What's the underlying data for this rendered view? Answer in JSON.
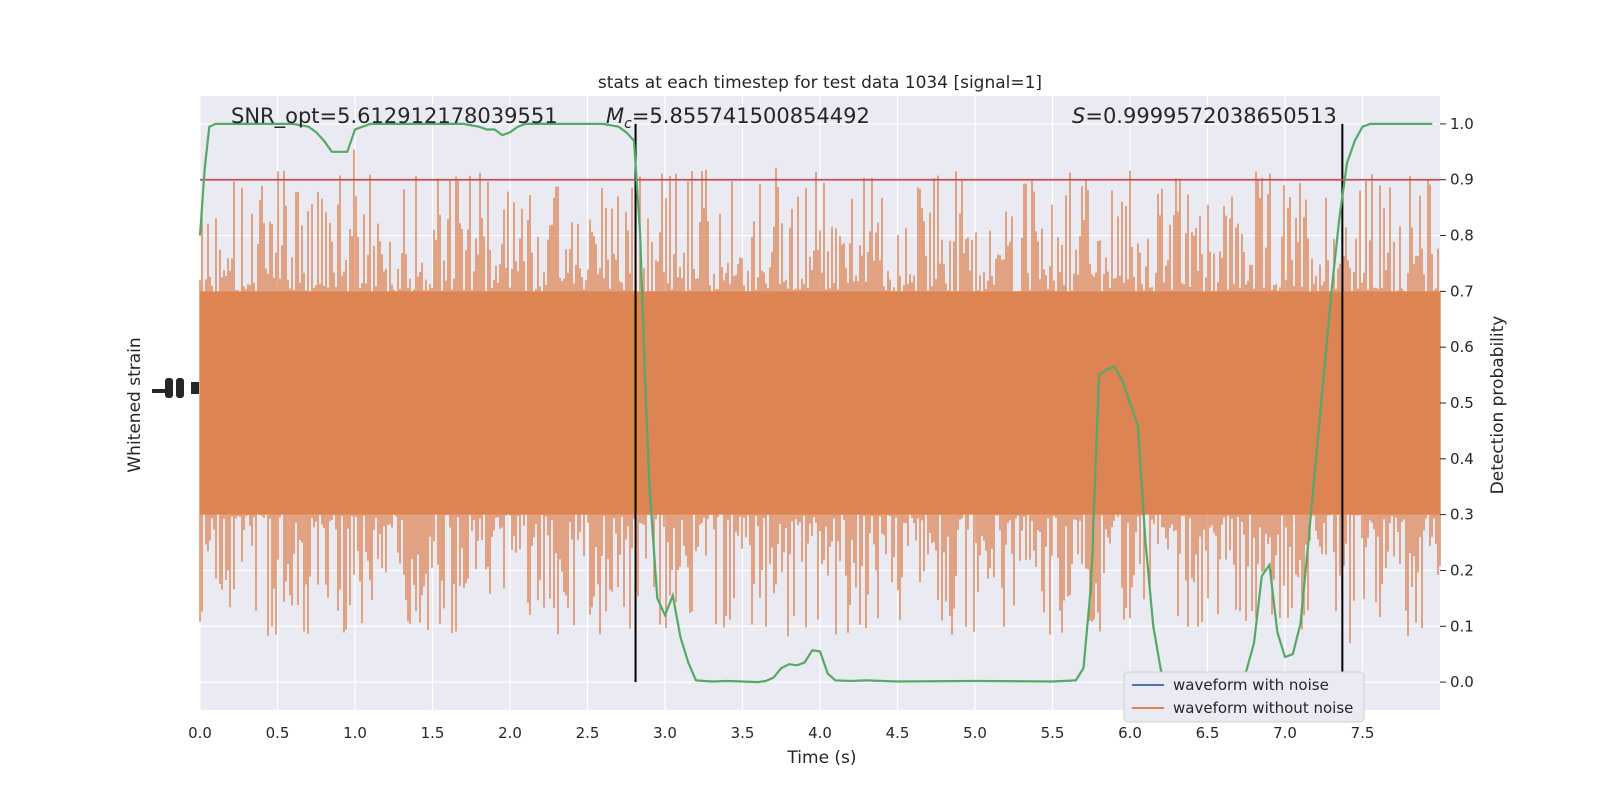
{
  "chart_data": {
    "type": "line",
    "title": "stats at each timestep for test data 1034 [signal=1]",
    "xlabel": "Time (s)",
    "ylabel_left": "Whitened strain",
    "ylabel_right": "Detection probability",
    "xlim": [
      0.0,
      8.0
    ],
    "ylim_right": [
      -0.05,
      1.05
    ],
    "x_ticks": [
      "0.0",
      "0.5",
      "1.0",
      "1.5",
      "2.0",
      "2.5",
      "3.0",
      "3.5",
      "4.0",
      "4.5",
      "5.0",
      "5.5",
      "6.0",
      "6.5",
      "7.0",
      "7.5"
    ],
    "y_ticks_right": [
      "0.0",
      "0.1",
      "0.2",
      "0.3",
      "0.4",
      "0.5",
      "0.6",
      "0.7",
      "0.8",
      "0.9",
      "1.0"
    ],
    "grid": true,
    "annotations": {
      "snr": "SNR_opt=5.612912178039551",
      "mc_sym": "M",
      "mc_sub": "c",
      "mc_val": "=5.855741500854492",
      "s_sym": "S",
      "s_val": "=0.9999572038650513"
    },
    "threshold": 0.9,
    "vlines": [
      2.81,
      7.37
    ],
    "legend": {
      "position": "lower right",
      "entries": [
        "waveform with noise",
        "waveform without noise"
      ]
    },
    "colors": {
      "waveform_with_noise": "#4c72b0",
      "waveform_without_noise": "#dd8452",
      "detection_probability": "#55a868",
      "threshold": "#c44e52",
      "vline": "#000000",
      "background": "#eaeaf2",
      "grid": "#ffffff"
    },
    "series": [
      {
        "label": "detection probability",
        "axis": "right",
        "x": [
          0.0,
          0.03,
          0.06,
          0.1,
          0.2,
          0.3,
          0.4,
          0.5,
          0.6,
          0.7,
          0.75,
          0.8,
          0.85,
          0.9,
          0.95,
          1.0,
          1.1,
          1.2,
          1.3,
          1.4,
          1.5,
          1.6,
          1.7,
          1.8,
          1.85,
          1.9,
          1.95,
          2.0,
          2.05,
          2.1,
          2.2,
          2.3,
          2.4,
          2.5,
          2.6,
          2.7,
          2.75,
          2.8,
          2.84,
          2.87,
          2.9,
          2.95,
          3.0,
          3.05,
          3.1,
          3.15,
          3.2,
          3.3,
          3.4,
          3.5,
          3.6,
          3.65,
          3.7,
          3.75,
          3.8,
          3.85,
          3.9,
          3.95,
          4.0,
          4.05,
          4.1,
          4.2,
          4.3,
          4.5,
          5.0,
          5.5,
          5.65,
          5.7,
          5.75,
          5.8,
          5.85,
          5.9,
          5.95,
          6.0,
          6.05,
          6.1,
          6.15,
          6.2,
          6.25,
          6.3,
          6.35,
          6.4,
          6.5,
          6.6,
          6.7,
          6.75,
          6.8,
          6.85,
          6.9,
          6.95,
          7.0,
          7.05,
          7.1,
          7.15,
          7.2,
          7.25,
          7.3,
          7.35,
          7.4,
          7.45,
          7.5,
          7.55,
          7.6,
          7.65,
          7.7,
          7.75,
          7.8,
          7.85,
          7.95
        ],
        "y": [
          0.8,
          0.92,
          0.995,
          1.0,
          1.0,
          1.0,
          1.0,
          1.0,
          1.0,
          0.995,
          0.985,
          0.97,
          0.95,
          0.95,
          0.95,
          0.99,
          1.0,
          1.0,
          1.0,
          1.0,
          1.0,
          1.0,
          1.0,
          0.995,
          0.99,
          0.99,
          0.98,
          0.985,
          0.995,
          1.0,
          1.0,
          1.0,
          1.0,
          1.0,
          1.0,
          0.995,
          0.985,
          0.97,
          0.8,
          0.55,
          0.35,
          0.15,
          0.12,
          0.155,
          0.08,
          0.035,
          0.003,
          0.001,
          0.002,
          0.001,
          0.0,
          0.002,
          0.008,
          0.025,
          0.032,
          0.03,
          0.035,
          0.057,
          0.055,
          0.015,
          0.003,
          0.002,
          0.003,
          0.001,
          0.002,
          0.001,
          0.003,
          0.025,
          0.18,
          0.55,
          0.56,
          0.565,
          0.54,
          0.5,
          0.46,
          0.25,
          0.1,
          0.02,
          0.0,
          0.0,
          0.0,
          0.0,
          0.0,
          0.0,
          0.0,
          0.02,
          0.07,
          0.19,
          0.21,
          0.09,
          0.045,
          0.05,
          0.105,
          0.25,
          0.4,
          0.55,
          0.7,
          0.83,
          0.93,
          0.97,
          0.995,
          1.0,
          1.0,
          1.0,
          1.0,
          1.0,
          1.0,
          1.0,
          1.0
        ]
      }
    ]
  }
}
